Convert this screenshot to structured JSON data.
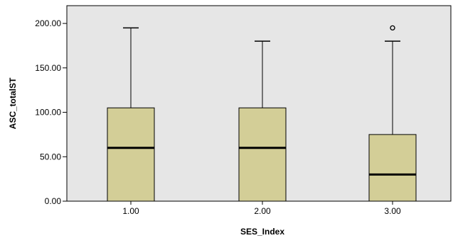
{
  "chart_data": {
    "type": "boxplot",
    "xlabel": "SES_Index",
    "ylabel": "ASC_totalST",
    "ylim": [
      0,
      220
    ],
    "grid": false,
    "y_ticks": [
      0,
      50,
      100,
      150,
      200
    ],
    "y_tick_labels": [
      "0.00",
      "50.00",
      "100.00",
      "150.00",
      "200.00"
    ],
    "categories": [
      "1.00",
      "2.00",
      "3.00"
    ],
    "boxes": [
      {
        "category": "1.00",
        "whisker_low": 0,
        "q1": 0,
        "median": 60,
        "q3": 105,
        "whisker_high": 195,
        "outliers": []
      },
      {
        "category": "2.00",
        "whisker_low": 0,
        "q1": 0,
        "median": 60,
        "q3": 105,
        "whisker_high": 180,
        "outliers": []
      },
      {
        "category": "3.00",
        "whisker_low": 0,
        "q1": 0,
        "median": 30,
        "q3": 75,
        "whisker_high": 180,
        "outliers": [
          195
        ]
      }
    ],
    "colors": {
      "plot_background": "#e6e6e6",
      "box_fill": "#d3ce97",
      "stroke": "#000000"
    }
  }
}
